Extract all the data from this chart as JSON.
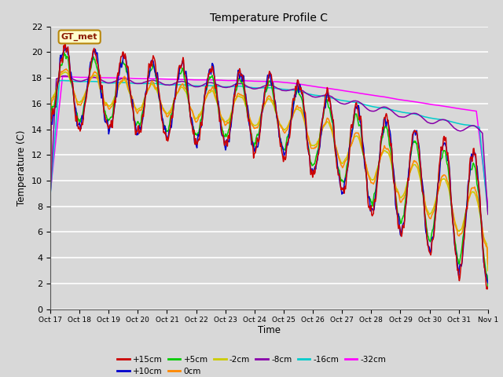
{
  "title": "Temperature Profile C",
  "xlabel": "Time",
  "ylabel": "Temperature (C)",
  "ylim": [
    0,
    22
  ],
  "yticks": [
    0,
    2,
    4,
    6,
    8,
    10,
    12,
    14,
    16,
    18,
    20,
    22
  ],
  "xtick_labels": [
    "Oct 17",
    "Oct 18",
    "Oct 19",
    "Oct 20",
    "Oct 21",
    "Oct 22",
    "Oct 23",
    "Oct 24",
    "Oct 25",
    "Oct 26",
    "Oct 27",
    "Oct 28",
    "Oct 29",
    "Oct 30",
    "Oct 31",
    "Nov 1"
  ],
  "series_labels": [
    "+15cm",
    "+10cm",
    "+5cm",
    "0cm",
    "-2cm",
    "-8cm",
    "-16cm",
    "-32cm"
  ],
  "series_colors": [
    "#cc0000",
    "#0000cc",
    "#00cc00",
    "#ff8800",
    "#cccc00",
    "#8800aa",
    "#00cccc",
    "#ff00ff"
  ],
  "bg_color": "#d8d8d8",
  "n_days": 15,
  "n_points": 720,
  "annotation_text": "GT_met"
}
